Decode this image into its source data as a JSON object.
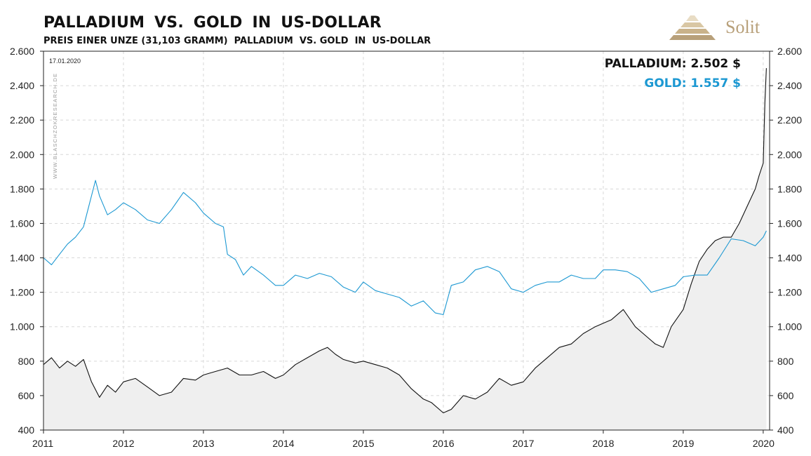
{
  "header": {
    "title": "PALLADIUM  VS. GOLD  IN  US-DOLLAR",
    "subtitle": "PREIS EINER UNZE (31,103 GRAMM)  PALLADIUM  VS. GOLD  IN  US-DOLLAR"
  },
  "logo": {
    "text": "Solit",
    "color": "#b8a07a"
  },
  "date_stamp": "17.01.2020",
  "watermark": "WWW.BLASCHZOKRESEARCH.DE",
  "legend": {
    "palladium": "PALLADIUM: 2.502 $",
    "gold": "GOLD: 1.557 $"
  },
  "colors": {
    "palladium": "#111111",
    "gold": "#1c98d2",
    "fill": "#efefef",
    "grid": "#d8d8d8"
  },
  "chart_data": {
    "type": "line",
    "title": "PALLADIUM  VS. GOLD  IN  US-DOLLAR",
    "xlabel": "",
    "ylabel": "",
    "xlim": [
      2011.0,
      2020.08
    ],
    "ylim": [
      400,
      2600
    ],
    "x_ticks": [
      "2011",
      "2012",
      "2013",
      "2014",
      "2015",
      "2016",
      "2017",
      "2018",
      "2019",
      "2020"
    ],
    "y_ticks": [
      "400",
      "600",
      "800",
      "1.000",
      "1.200",
      "1.400",
      "1.600",
      "1.800",
      "2.000",
      "2.200",
      "2.400",
      "2.600"
    ],
    "y_tick_values": [
      400,
      600,
      800,
      1000,
      1200,
      1400,
      1600,
      1800,
      2000,
      2200,
      2400,
      2600
    ],
    "grid": true,
    "legend_position": "top-right",
    "series": [
      {
        "name": "PALLADIUM",
        "color": "#111111",
        "x": [
          2011.0,
          2011.1,
          2011.2,
          2011.3,
          2011.4,
          2011.5,
          2011.6,
          2011.7,
          2011.8,
          2011.9,
          2012.0,
          2012.15,
          2012.3,
          2012.45,
          2012.6,
          2012.75,
          2012.9,
          2013.0,
          2013.15,
          2013.3,
          2013.45,
          2013.6,
          2013.75,
          2013.9,
          2014.0,
          2014.15,
          2014.3,
          2014.45,
          2014.55,
          2014.65,
          2014.75,
          2014.9,
          2015.0,
          2015.15,
          2015.3,
          2015.45,
          2015.6,
          2015.75,
          2015.85,
          2016.0,
          2016.1,
          2016.25,
          2016.4,
          2016.55,
          2016.7,
          2016.85,
          2017.0,
          2017.15,
          2017.3,
          2017.45,
          2017.6,
          2017.75,
          2017.9,
          2018.0,
          2018.1,
          2018.25,
          2018.4,
          2018.55,
          2018.65,
          2018.75,
          2018.85,
          2019.0,
          2019.1,
          2019.2,
          2019.3,
          2019.4,
          2019.5,
          2019.6,
          2019.7,
          2019.8,
          2019.9,
          2019.95,
          2020.0,
          2020.02,
          2020.04
        ],
        "values": [
          780,
          820,
          760,
          800,
          770,
          810,
          680,
          590,
          660,
          620,
          680,
          700,
          650,
          600,
          620,
          700,
          690,
          720,
          740,
          760,
          720,
          720,
          740,
          700,
          720,
          780,
          820,
          860,
          880,
          840,
          810,
          790,
          800,
          780,
          760,
          720,
          640,
          580,
          560,
          500,
          520,
          600,
          580,
          620,
          700,
          660,
          680,
          760,
          820,
          880,
          900,
          960,
          1000,
          1020,
          1040,
          1100,
          1000,
          940,
          900,
          880,
          1000,
          1100,
          1250,
          1380,
          1450,
          1500,
          1520,
          1520,
          1600,
          1700,
          1800,
          1880,
          1950,
          2300,
          2502
        ]
      },
      {
        "name": "GOLD",
        "color": "#1c98d2",
        "x": [
          2011.0,
          2011.1,
          2011.2,
          2011.3,
          2011.4,
          2011.5,
          2011.6,
          2011.65,
          2011.7,
          2011.8,
          2011.9,
          2012.0,
          2012.15,
          2012.3,
          2012.45,
          2012.6,
          2012.75,
          2012.9,
          2013.0,
          2013.15,
          2013.25,
          2013.3,
          2013.4,
          2013.5,
          2013.6,
          2013.75,
          2013.9,
          2014.0,
          2014.15,
          2014.3,
          2014.45,
          2014.6,
          2014.75,
          2014.9,
          2015.0,
          2015.15,
          2015.3,
          2015.45,
          2015.6,
          2015.75,
          2015.9,
          2016.0,
          2016.1,
          2016.25,
          2016.4,
          2016.55,
          2016.7,
          2016.85,
          2017.0,
          2017.15,
          2017.3,
          2017.45,
          2017.6,
          2017.75,
          2017.9,
          2018.0,
          2018.15,
          2018.3,
          2018.45,
          2018.6,
          2018.75,
          2018.9,
          2019.0,
          2019.15,
          2019.3,
          2019.45,
          2019.6,
          2019.75,
          2019.9,
          2020.0,
          2020.04
        ],
        "values": [
          1400,
          1360,
          1420,
          1480,
          1520,
          1580,
          1760,
          1850,
          1760,
          1650,
          1680,
          1720,
          1680,
          1620,
          1600,
          1680,
          1780,
          1720,
          1660,
          1600,
          1580,
          1420,
          1390,
          1300,
          1350,
          1300,
          1240,
          1240,
          1300,
          1280,
          1310,
          1290,
          1230,
          1200,
          1260,
          1210,
          1190,
          1170,
          1120,
          1150,
          1080,
          1070,
          1240,
          1260,
          1330,
          1350,
          1320,
          1220,
          1200,
          1240,
          1260,
          1260,
          1300,
          1280,
          1280,
          1330,
          1330,
          1320,
          1280,
          1200,
          1220,
          1240,
          1290,
          1300,
          1300,
          1400,
          1510,
          1500,
          1470,
          1520,
          1557
        ]
      }
    ]
  }
}
